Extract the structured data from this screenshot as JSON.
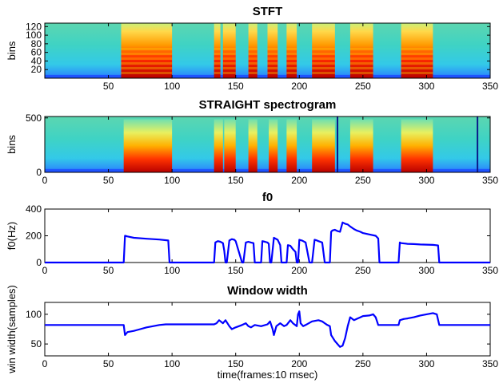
{
  "chart_data": [
    {
      "type": "heatmap",
      "title": "STFT",
      "ylabel": "bins",
      "xlim": [
        0,
        350
      ],
      "ylim": [
        0,
        128
      ],
      "xticks": [
        "50",
        "100",
        "150",
        "200",
        "250",
        "300",
        "350"
      ],
      "yticks": [
        "20",
        "40",
        "60",
        "80",
        "100",
        "120"
      ],
      "colormap": "jet",
      "voiced_segments": [
        [
          60,
          100
        ],
        [
          133,
          138
        ],
        [
          140,
          150
        ],
        [
          160,
          167
        ],
        [
          175,
          183
        ],
        [
          190,
          198
        ],
        [
          210,
          228
        ],
        [
          240,
          258
        ],
        [
          280,
          305
        ]
      ]
    },
    {
      "type": "heatmap",
      "title": "STRAIGHT spectrogram",
      "ylabel": "bins",
      "xlim": [
        0,
        350
      ],
      "ylim": [
        0,
        513
      ],
      "xticks": [
        "0",
        "50",
        "100",
        "150",
        "200",
        "250",
        "300",
        "350"
      ],
      "yticks": [
        "0",
        "500"
      ],
      "colormap": "jet",
      "voiced_segments": [
        [
          62,
          100
        ],
        [
          133,
          140
        ],
        [
          141,
          150
        ],
        [
          160,
          167
        ],
        [
          176,
          183
        ],
        [
          190,
          198
        ],
        [
          210,
          228
        ],
        [
          240,
          258
        ],
        [
          280,
          305
        ]
      ]
    },
    {
      "type": "line",
      "title": "f0",
      "xlabel": "",
      "ylabel": "f0(Hz)",
      "xlim": [
        0,
        350
      ],
      "ylim": [
        0,
        400
      ],
      "xticks": [
        "0",
        "50",
        "100",
        "150",
        "200",
        "250",
        "300",
        "350"
      ],
      "yticks": [
        "0",
        "200",
        "400"
      ],
      "color": "#0000ff",
      "x": [
        0,
        62,
        63,
        65,
        70,
        80,
        90,
        97,
        98,
        133,
        134,
        136,
        138,
        140,
        141,
        142,
        143,
        145,
        147,
        149,
        150,
        155,
        156,
        158,
        160,
        162,
        164,
        165,
        170,
        171,
        173,
        175,
        176,
        177,
        178,
        180,
        183,
        185,
        186,
        188,
        190,
        191,
        193,
        195,
        197,
        198,
        199,
        200,
        202,
        203,
        205,
        208,
        210,
        212,
        213,
        215,
        218,
        220,
        221,
        222,
        224,
        225,
        226,
        228,
        230,
        232,
        234,
        236,
        238,
        240,
        243,
        245,
        248,
        250,
        255,
        260,
        262,
        263,
        270,
        278,
        279,
        280,
        285,
        290,
        295,
        300,
        305,
        307,
        309,
        310,
        350
      ],
      "y": [
        0,
        0,
        200,
        195,
        185,
        178,
        172,
        165,
        0,
        0,
        150,
        160,
        155,
        145,
        90,
        0,
        0,
        165,
        175,
        170,
        160,
        0,
        0,
        150,
        155,
        150,
        145,
        0,
        0,
        160,
        155,
        150,
        140,
        0,
        0,
        185,
        170,
        130,
        0,
        0,
        0,
        130,
        125,
        100,
        80,
        0,
        0,
        170,
        165,
        160,
        150,
        0,
        0,
        170,
        168,
        160,
        150,
        0,
        0,
        0,
        0,
        230,
        240,
        245,
        235,
        230,
        300,
        290,
        285,
        270,
        250,
        240,
        230,
        220,
        210,
        200,
        180,
        0,
        0,
        0,
        150,
        145,
        140,
        138,
        135,
        134,
        132,
        130,
        128,
        0,
        0
      ]
    },
    {
      "type": "line",
      "title": "Window width",
      "xlabel": "time(frames:10 msec)",
      "ylabel": "win width(samples)",
      "xlim": [
        0,
        350
      ],
      "ylim": [
        30,
        120
      ],
      "xticks": [
        "0",
        "50",
        "100",
        "150",
        "200",
        "250",
        "300",
        "350"
      ],
      "yticks": [
        "50",
        "100"
      ],
      "color": "#0000ff",
      "x": [
        0,
        62,
        63,
        65,
        70,
        75,
        80,
        85,
        90,
        95,
        98,
        100,
        133,
        135,
        137,
        140,
        142,
        145,
        147,
        150,
        155,
        158,
        160,
        162,
        165,
        170,
        175,
        177,
        179,
        180,
        182,
        185,
        188,
        190,
        193,
        195,
        198,
        199,
        200,
        201,
        203,
        205,
        210,
        215,
        218,
        220,
        222,
        224,
        225,
        228,
        230,
        232,
        234,
        236,
        238,
        240,
        243,
        245,
        248,
        250,
        255,
        258,
        260,
        262,
        270,
        278,
        279,
        282,
        285,
        290,
        295,
        300,
        305,
        308,
        310,
        350
      ],
      "y": [
        82,
        82,
        65,
        70,
        72,
        75,
        78,
        80,
        82,
        83,
        83,
        83,
        83,
        85,
        90,
        85,
        90,
        80,
        75,
        78,
        82,
        85,
        80,
        78,
        82,
        80,
        83,
        88,
        75,
        65,
        80,
        85,
        80,
        82,
        90,
        85,
        80,
        100,
        105,
        85,
        80,
        82,
        88,
        90,
        88,
        85,
        82,
        80,
        65,
        55,
        50,
        45,
        47,
        60,
        80,
        95,
        90,
        92,
        95,
        97,
        98,
        100,
        95,
        82,
        82,
        82,
        90,
        92,
        93,
        95,
        98,
        100,
        102,
        100,
        82,
        82
      ]
    }
  ]
}
